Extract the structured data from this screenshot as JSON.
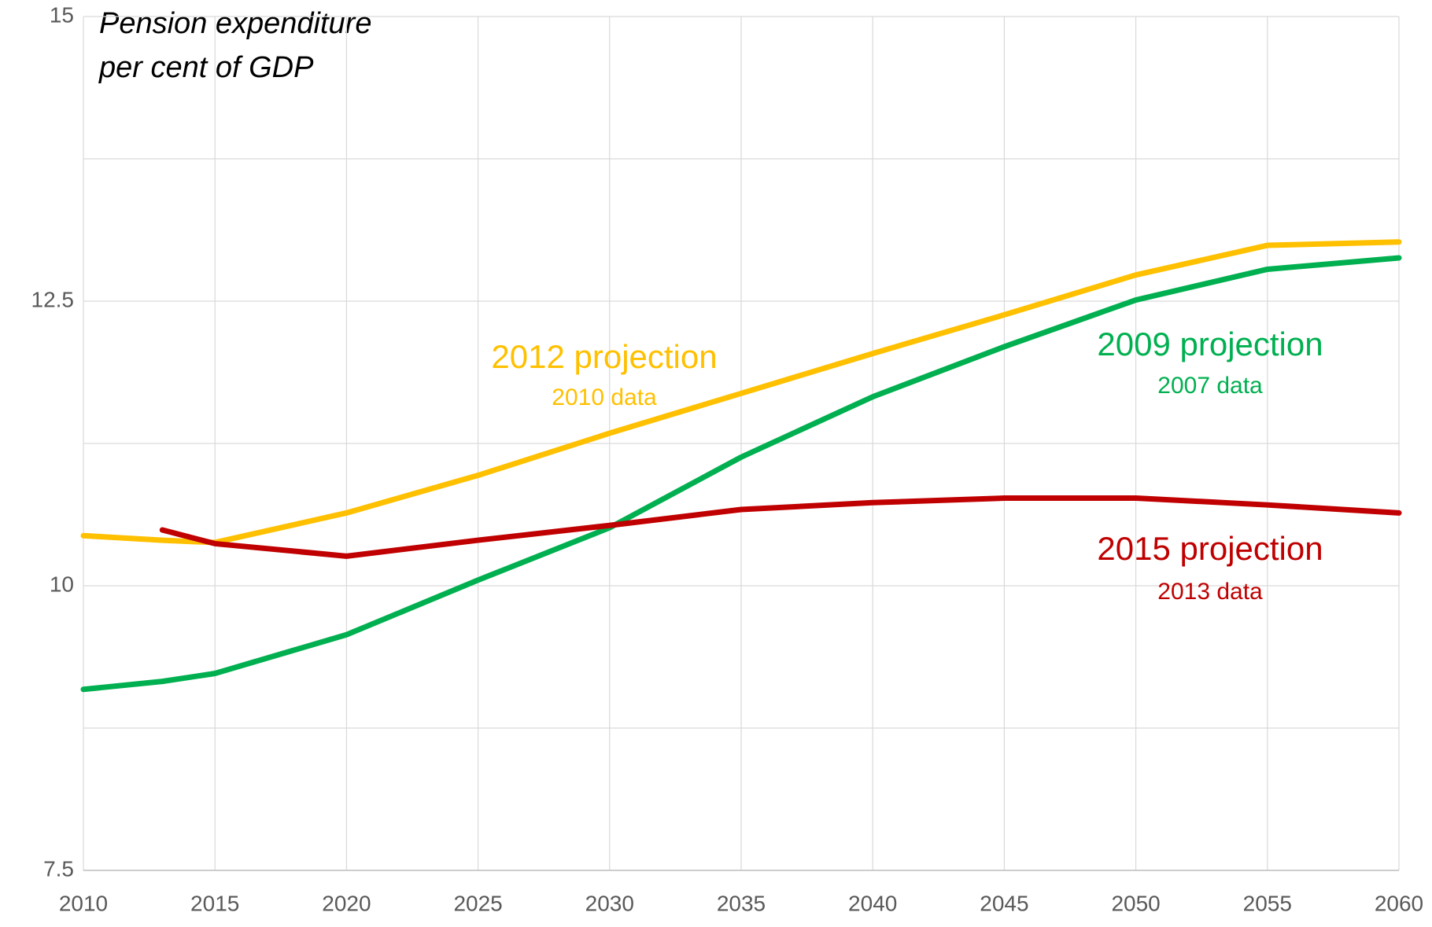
{
  "chart_data": {
    "type": "line",
    "title_lines": [
      "Pension expenditure",
      "per cent of GDP"
    ],
    "x": [
      2010,
      2013,
      2015,
      2020,
      2025,
      2030,
      2035,
      2040,
      2045,
      2050,
      2055,
      2060
    ],
    "series": [
      {
        "name": "2012 projection",
        "note": "2010 data",
        "color": "#FFC000",
        "values": [
          10.44,
          10.4,
          10.38,
          10.64,
          10.97,
          11.34,
          11.69,
          12.04,
          12.38,
          12.73,
          12.99,
          13.02
        ]
      },
      {
        "name": "2009 projection",
        "note": "2007 data",
        "color": "#00B050",
        "values": [
          9.09,
          9.16,
          9.23,
          9.57,
          10.05,
          10.51,
          11.13,
          11.66,
          12.1,
          12.51,
          12.78,
          12.88
        ]
      },
      {
        "name": "2015 projection",
        "note": "2013 data",
        "color": "#C00000",
        "values": [
          null,
          10.49,
          10.37,
          10.26,
          10.4,
          10.53,
          10.67,
          10.73,
          10.77,
          10.77,
          10.71,
          10.64
        ]
      }
    ],
    "xlim": [
      2010,
      2060
    ],
    "xticks": [
      2010,
      2015,
      2020,
      2025,
      2030,
      2035,
      2040,
      2045,
      2050,
      2055,
      2060
    ],
    "ylim": [
      7.5,
      15
    ],
    "yticks": [
      7.5,
      10,
      12.5,
      15
    ],
    "yminor": [
      8.75,
      11.25,
      13.75
    ],
    "grid": true
  }
}
